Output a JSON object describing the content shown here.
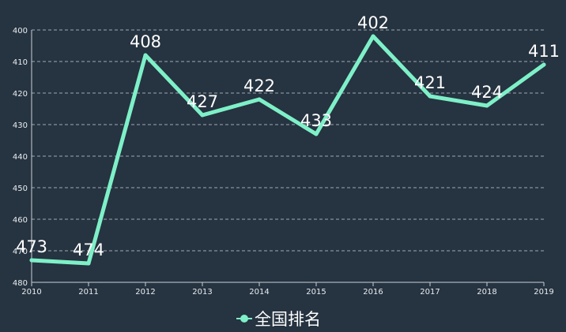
{
  "chart_data": {
    "type": "line",
    "categories": [
      "2010",
      "2011",
      "2012",
      "2013",
      "2014",
      "2015",
      "2016",
      "2017",
      "2018",
      "2019"
    ],
    "series": [
      {
        "name": "全国排名",
        "values": [
          473,
          474,
          408,
          427,
          422,
          433,
          402,
          421,
          424,
          411
        ],
        "color": "#7ef0c8"
      }
    ],
    "y_ticks": [
      400,
      410,
      420,
      430,
      440,
      450,
      460,
      470,
      480
    ],
    "ylim": [
      400,
      480
    ],
    "y_inverted": true,
    "grid": true,
    "legend_position": "bottom-center",
    "title": "",
    "xlabel": "",
    "ylabel": ""
  },
  "colors": {
    "background": "#263340",
    "axis": "#c8d0d8",
    "grid": "#c8d0d8",
    "text": "#e8edf2"
  }
}
